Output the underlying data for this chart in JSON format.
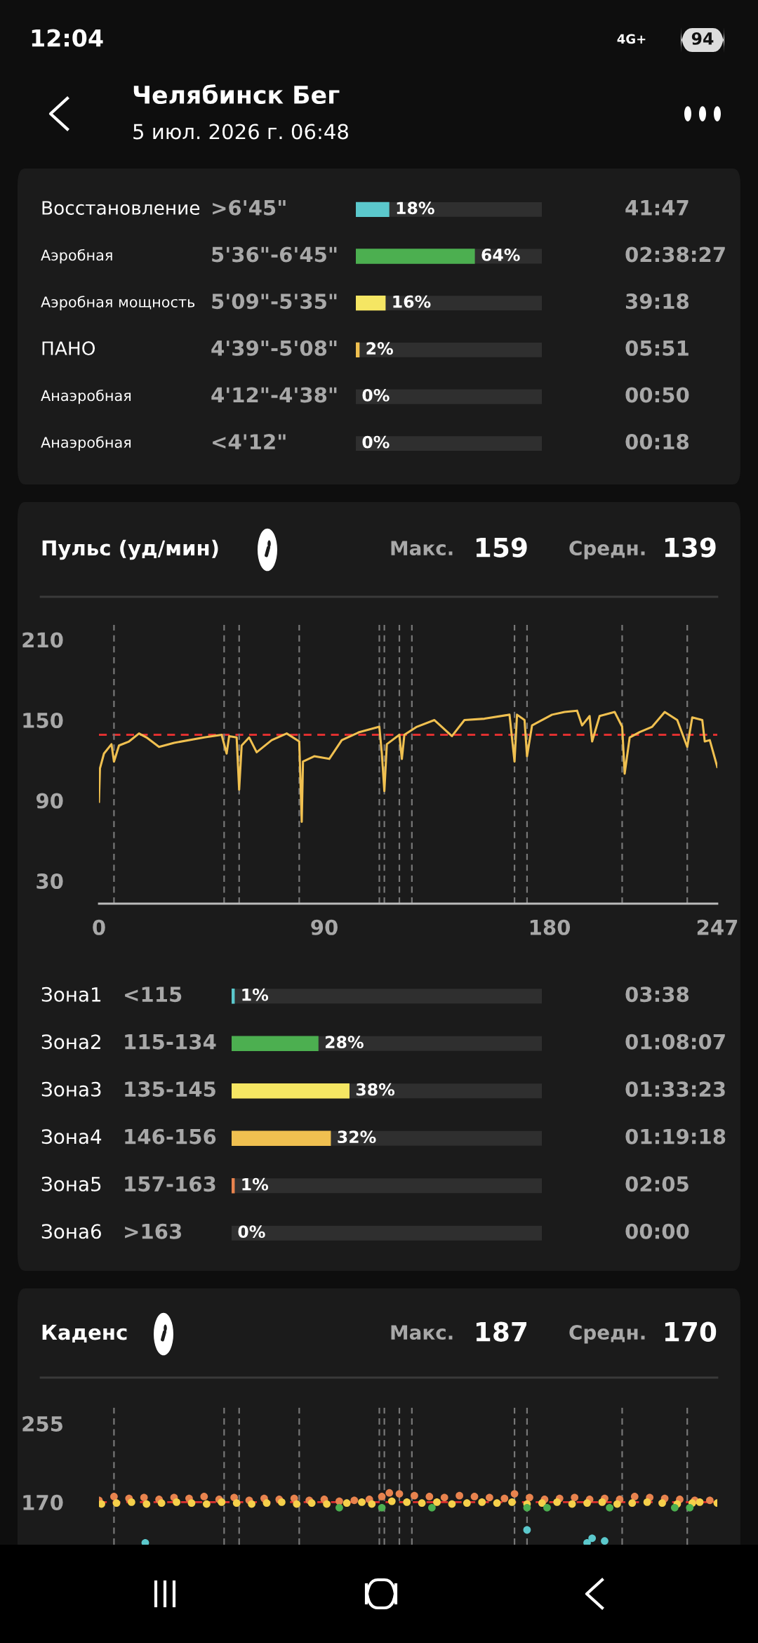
{
  "chart_data": [
    {
      "type": "bar",
      "orientation": "horizontal",
      "title": "Челябинск Бег",
      "subtitle": "5 июл. 2026 г. 06:48",
      "categories": [
        "Восстановление",
        "Аэробная",
        "Аэробная мощность",
        "ПАНО",
        "Анаэробная",
        "Анаэробная"
      ],
      "values": [
        18,
        64,
        16,
        2,
        0,
        0
      ],
      "colors": [
        "#5bc8cc",
        "#4caf50",
        "#f5e663",
        "#f0c050",
        "#e8834e",
        "#e05050"
      ],
      "value_labels": [
        "18%",
        "64%",
        "16%",
        "2%",
        "0%",
        "0%"
      ],
      "xlim": [
        0,
        100
      ],
      "tick_labels": false,
      "grid": "y",
      "annotations": [
        "12:04",
        "4G+",
        "94",
        ">6'45\"",
        "41:47",
        "5'36\"-6'45\"",
        "02:38:27",
        "5'09\"-5'35\"",
        "39:18",
        "4'39\"-5'08\"",
        "05:51",
        "4'12\"-4'38\"",
        "00:50",
        "<4'12\"",
        "00:18"
      ]
    },
    {
      "type": "line",
      "title": "Пульс (уд/мин)",
      "annotations": [
        "Макс.",
        "159",
        "Средн.",
        "139"
      ],
      "series": [
        {
          "color": "#f0c050",
          "x": [
            0,
            0.4,
            2,
            5,
            6,
            8,
            12,
            16,
            19,
            24,
            30,
            42,
            49,
            51,
            52,
            55,
            56,
            57,
            60,
            63,
            69,
            75,
            80,
            81,
            81.5,
            86,
            92,
            97,
            104,
            112,
            113,
            114,
            115,
            120,
            121,
            122,
            127,
            134,
            141,
            146,
            154,
            164,
            166,
            167,
            170,
            171,
            173,
            181,
            186,
            191,
            193,
            196,
            197,
            200,
            206,
            209,
            210,
            212,
            216,
            221,
            226,
            231,
            235,
            237,
            241,
            242,
            244,
            247
          ],
          "values": [
            89,
            114,
            125,
            132,
            119,
            131,
            134,
            140,
            137,
            130,
            133,
            137,
            139,
            125,
            138,
            137,
            98,
            131,
            137,
            126,
            135,
            140,
            134,
            74,
            119,
            123,
            121,
            135,
            141,
            145,
            125,
            97,
            132,
            139,
            121,
            139,
            145,
            150,
            138,
            150,
            151,
            154,
            119,
            154,
            150,
            123,
            146,
            154,
            156,
            157,
            146,
            153,
            134,
            153,
            156,
            145,
            110,
            137,
            141,
            145,
            156,
            150,
            130,
            152,
            150,
            134,
            135,
            115
          ]
        }
      ],
      "xlim": [
        0,
        247
      ],
      "xticks": [
        0,
        90,
        180,
        247
      ],
      "ylim": [
        13,
        221
      ],
      "yticks": [
        30,
        90,
        150,
        210
      ],
      "marker": "none",
      "line_style": "solid",
      "grid": false,
      "legend": false,
      "ref_lines": [
        {
          "axis": "y",
          "value": 139,
          "color": "#e03030",
          "line_style": "dashed"
        },
        {
          "axis": "x",
          "value": 6,
          "color": "#777777",
          "line_style": "dashed"
        },
        {
          "axis": "x",
          "value": 50,
          "color": "#777777",
          "line_style": "dashed"
        },
        {
          "axis": "x",
          "value": 56,
          "color": "#777777",
          "line_style": "dashed"
        },
        {
          "axis": "x",
          "value": 80,
          "color": "#777777",
          "line_style": "dashed"
        },
        {
          "axis": "x",
          "value": 112,
          "color": "#777777",
          "line_style": "dashed"
        },
        {
          "axis": "x",
          "value": 114,
          "color": "#777777",
          "line_style": "dashed"
        },
        {
          "axis": "x",
          "value": 120,
          "color": "#777777",
          "line_style": "dashed"
        },
        {
          "axis": "x",
          "value": 125,
          "color": "#777777",
          "line_style": "dashed"
        },
        {
          "axis": "x",
          "value": 166,
          "color": "#777777",
          "line_style": "dashed"
        },
        {
          "axis": "x",
          "value": 171,
          "color": "#777777",
          "line_style": "dashed"
        },
        {
          "axis": "x",
          "value": 209,
          "color": "#777777",
          "line_style": "dashed"
        },
        {
          "axis": "x",
          "value": 235,
          "color": "#777777",
          "line_style": "dashed"
        }
      ]
    },
    {
      "type": "bar",
      "orientation": "horizontal",
      "categories": [
        "Зона1",
        "Зона2",
        "Зона3",
        "Зона4",
        "Зона5",
        "Зона6"
      ],
      "values": [
        1,
        28,
        38,
        32,
        1,
        0
      ],
      "colors": [
        "#5bc8cc",
        "#4caf50",
        "#f5e663",
        "#f0c050",
        "#e8834e",
        "#e05050"
      ],
      "value_labels": [
        "1%",
        "28%",
        "38%",
        "32%",
        "1%",
        "0%"
      ],
      "xlim": [
        0,
        100
      ],
      "tick_labels": false,
      "grid": "y",
      "annotations": [
        "<115",
        "03:38",
        "115-134",
        "01:08:07",
        "135-145",
        "01:33:23",
        "146-156",
        "01:19:18",
        "157-163",
        "02:05",
        ">163",
        "00:00"
      ]
    },
    {
      "type": "scatter",
      "title": "Каденс",
      "annotations": [
        "Макс.",
        "187",
        "Средн.",
        "170"
      ],
      "series": [
        {
          "color": "#e8834e",
          "x": [
            0,
            6,
            12,
            18,
            24,
            30,
            36,
            42,
            48,
            54,
            60,
            66,
            72,
            78,
            84,
            90,
            96,
            102,
            108,
            113,
            116,
            120,
            126,
            132,
            138,
            144,
            150,
            156,
            162,
            166,
            172,
            178,
            184,
            190,
            196,
            202,
            208,
            214,
            220,
            226,
            232,
            238,
            244
          ],
          "values": [
            172,
            176,
            174,
            175,
            173,
            175,
            174,
            176,
            173,
            175,
            172,
            174,
            173,
            174,
            172,
            173,
            171,
            172,
            173,
            176,
            180,
            179,
            177,
            176,
            175,
            177,
            176,
            175,
            174,
            179,
            175,
            173,
            174,
            175,
            173,
            174,
            173,
            176,
            175,
            174,
            173,
            172,
            172
          ]
        },
        {
          "color": "#f5d04a",
          "x": [
            1,
            7,
            13,
            19,
            25,
            31,
            37,
            43,
            49,
            55,
            61,
            67,
            73,
            79,
            85,
            91,
            99,
            105,
            109,
            117,
            123,
            129,
            135,
            141,
            147,
            153,
            159,
            165,
            171,
            177,
            183,
            189,
            195,
            201,
            207,
            213,
            219,
            225,
            231,
            237,
            240,
            247
          ],
          "values": [
            168,
            169,
            170,
            168,
            169,
            170,
            169,
            168,
            170,
            169,
            168,
            169,
            170,
            168,
            169,
            168,
            169,
            170,
            168,
            171,
            170,
            169,
            170,
            168,
            169,
            170,
            169,
            170,
            168,
            169,
            170,
            168,
            169,
            170,
            168,
            169,
            170,
            169,
            168,
            169,
            170,
            169
          ]
        },
        {
          "color": "#4caf50",
          "x": [
            96,
            113,
            133,
            171,
            179,
            204,
            230,
            236
          ],
          "values": [
            164,
            164,
            164,
            164,
            164,
            164,
            164,
            164
          ]
        },
        {
          "color": "#5bc8cc",
          "x": [
            18.5,
            171,
            195,
            197,
            202
          ],
          "values": [
            126,
            140,
            126,
            131,
            128
          ]
        }
      ],
      "xlim": [
        0,
        247
      ],
      "ylim": [
        124,
        272
      ],
      "yticks": [
        170,
        255
      ],
      "tick_labels": "y",
      "marker": "circle",
      "grid": false,
      "legend": false,
      "ref_lines": [
        {
          "axis": "y",
          "value": 170,
          "color": "#e03030",
          "line_style": "dashed"
        },
        {
          "axis": "x",
          "value": 6,
          "color": "#777777",
          "line_style": "dashed"
        },
        {
          "axis": "x",
          "value": 50,
          "color": "#777777",
          "line_style": "dashed"
        },
        {
          "axis": "x",
          "value": 56,
          "color": "#777777",
          "line_style": "dashed"
        },
        {
          "axis": "x",
          "value": 80,
          "color": "#777777",
          "line_style": "dashed"
        },
        {
          "axis": "x",
          "value": 112,
          "color": "#777777",
          "line_style": "dashed"
        },
        {
          "axis": "x",
          "value": 114,
          "color": "#777777",
          "line_style": "dashed"
        },
        {
          "axis": "x",
          "value": 120,
          "color": "#777777",
          "line_style": "dashed"
        },
        {
          "axis": "x",
          "value": 125,
          "color": "#777777",
          "line_style": "dashed"
        },
        {
          "axis": "x",
          "value": 166,
          "color": "#777777",
          "line_style": "dashed"
        },
        {
          "axis": "x",
          "value": 171,
          "color": "#777777",
          "line_style": "dashed"
        },
        {
          "axis": "x",
          "value": 209,
          "color": "#777777",
          "line_style": "dashed"
        },
        {
          "axis": "x",
          "value": 235,
          "color": "#777777",
          "line_style": "dashed"
        }
      ]
    }
  ]
}
